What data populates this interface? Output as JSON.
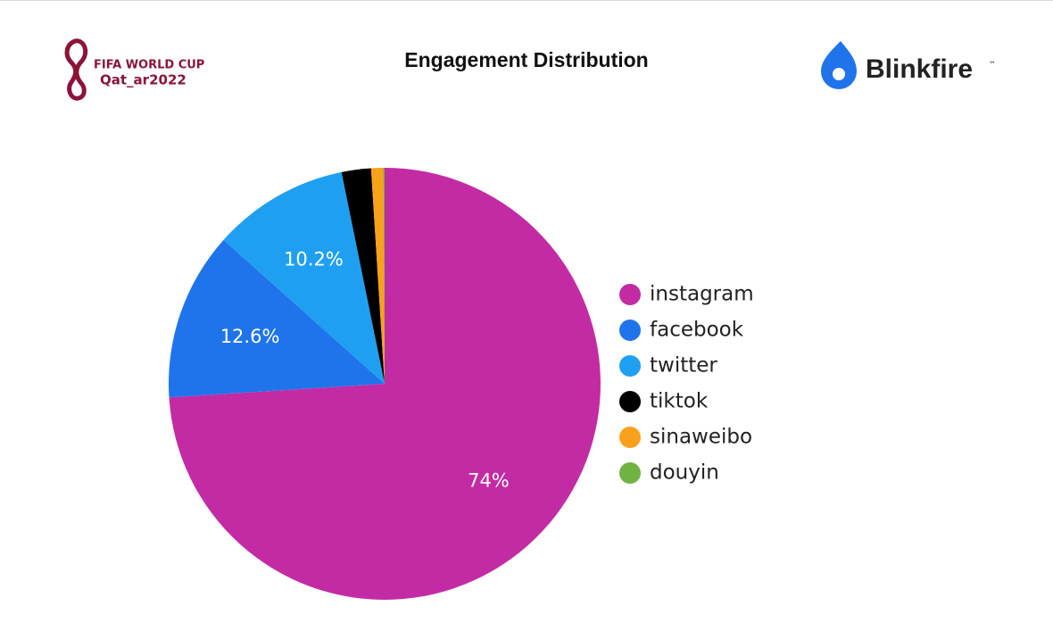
{
  "header": {
    "left_logo": [
      "FIFA WORLD CUP",
      "Qat_ar2022"
    ],
    "right_logo": "Blinkfire",
    "trademark": "™"
  },
  "chart_data": {
    "type": "pie",
    "title": "Engagement Distribution",
    "categories": [
      "instagram",
      "facebook",
      "twitter",
      "tiktok",
      "sinaweibo",
      "douyin"
    ],
    "values": [
      74,
      12.6,
      10.2,
      2.2,
      0.9,
      0.1
    ],
    "value_labels": [
      "74%",
      "12.6%",
      "10.2%",
      null,
      null,
      null
    ],
    "colors": [
      "#c32ba5",
      "#1f74ec",
      "#1f9ff1",
      "#000000",
      "#f9a11b",
      "#71b343"
    ],
    "legend": "right"
  }
}
